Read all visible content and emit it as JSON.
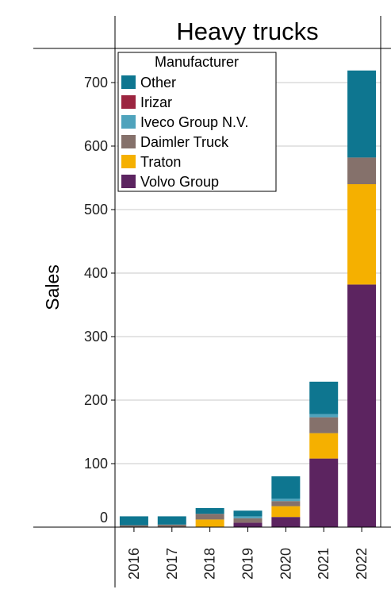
{
  "chart_data": {
    "type": "bar",
    "stacked": true,
    "title": "Heavy trucks",
    "ylabel": "Sales",
    "xlabel": "",
    "ylim": [
      0,
      750
    ],
    "yticks": [
      0,
      100,
      200,
      300,
      400,
      500,
      600,
      700
    ],
    "grid": true,
    "legend": {
      "title": "Manufacturer",
      "placement": "top-left"
    },
    "categories": [
      "2016",
      "2017",
      "2018",
      "2019",
      "2020",
      "2021",
      "2022"
    ],
    "series": [
      {
        "name": "Volvo Group",
        "color": "#5c2460",
        "values": [
          0,
          0,
          0,
          7,
          16,
          108,
          382
        ]
      },
      {
        "name": "Traton",
        "color": "#f5b000",
        "values": [
          0,
          0,
          12,
          0,
          17,
          40,
          158
        ]
      },
      {
        "name": "Daimler Truck",
        "color": "#85716b",
        "values": [
          3,
          4,
          9,
          7,
          8,
          25,
          42
        ]
      },
      {
        "name": "Iveco Group N.V.",
        "color": "#4fa3bc",
        "values": [
          0,
          0,
          0,
          3,
          4,
          5,
          0
        ]
      },
      {
        "name": "Irizar",
        "color": "#9c2540",
        "values": [
          0,
          0,
          0,
          0,
          0,
          0,
          0
        ]
      },
      {
        "name": "Other",
        "color": "#0e7690",
        "values": [
          14,
          13,
          9,
          9,
          35,
          51,
          137
        ]
      }
    ]
  }
}
